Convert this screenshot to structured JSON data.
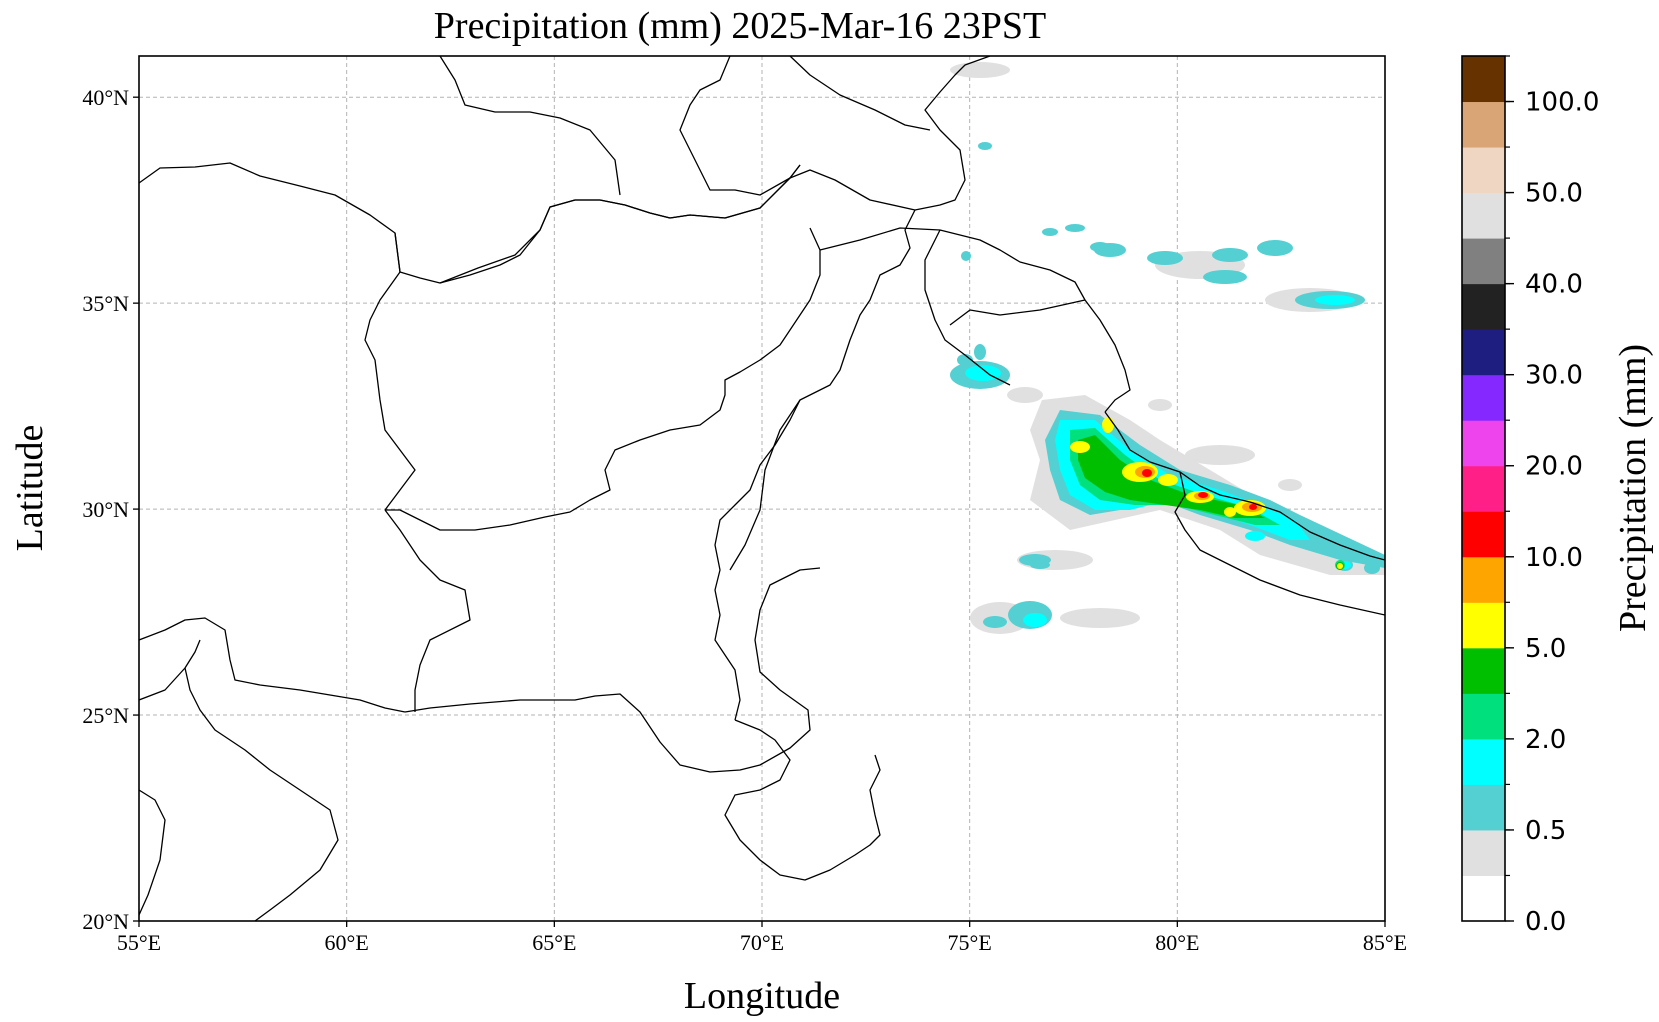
{
  "title": "Precipitation (mm)  2025-Mar-16 23PST",
  "axes": {
    "xlabel": "Longitude",
    "ylabel": "Latitude",
    "lon_range": [
      55,
      85
    ],
    "lat_range": [
      20,
      41
    ],
    "x_ticks": [
      {
        "value": 55,
        "label": "55°E"
      },
      {
        "value": 60,
        "label": "60°E"
      },
      {
        "value": 65,
        "label": "65°E"
      },
      {
        "value": 70,
        "label": "70°E"
      },
      {
        "value": 75,
        "label": "75°E"
      },
      {
        "value": 80,
        "label": "80°E"
      },
      {
        "value": 85,
        "label": "85°E"
      }
    ],
    "y_ticks": [
      {
        "value": 20,
        "label": "20°N"
      },
      {
        "value": 25,
        "label": "25°N"
      },
      {
        "value": 30,
        "label": "30°N"
      },
      {
        "value": 35,
        "label": "35°N"
      },
      {
        "value": 40,
        "label": "40°N"
      }
    ],
    "grid": "dashed"
  },
  "colorbar": {
    "label": "Precipitation (mm)",
    "levels": [
      0,
      0.25,
      0.5,
      1,
      2,
      3,
      5,
      7.5,
      10,
      15,
      20,
      25,
      30,
      35,
      40,
      45,
      50,
      75,
      100,
      125
    ],
    "colors": [
      "#ffffff",
      "#e0e0e0",
      "#54cfd2",
      "#00ffff",
      "#00e07c",
      "#00bf00",
      "#ffff00",
      "#ffa500",
      "#ff0000",
      "#ff1f87",
      "#ee44ee",
      "#8528ff",
      "#1e1e80",
      "#222222",
      "#808080",
      "#e0e0e0",
      "#eed6c2",
      "#d9a576",
      "#663300"
    ],
    "tick_labels": [
      "0.0",
      "0.5",
      "2.0",
      "5.0",
      "10.0",
      "20.0",
      "30.0",
      "40.0",
      "50.0",
      "100.0"
    ],
    "tick_label_index": [
      0,
      2,
      4,
      6,
      8,
      10,
      12,
      14,
      16,
      18
    ]
  },
  "chart_data": {
    "type": "heatmap",
    "title": "Precipitation (mm)  2025-Mar-16 23PST",
    "xlabel": "Longitude",
    "ylabel": "Latitude",
    "xlim": [
      55,
      85
    ],
    "ylim": [
      20,
      41
    ],
    "precip_cells": [
      {
        "lon": 77.6,
        "lat": 31.5,
        "mm": 3.0
      },
      {
        "lon": 78.0,
        "lat": 31.3,
        "mm": 6.0
      },
      {
        "lon": 78.5,
        "lat": 31.0,
        "mm": 4.0
      },
      {
        "lon": 79.2,
        "lat": 30.6,
        "mm": 8.0
      },
      {
        "lon": 79.7,
        "lat": 30.6,
        "mm": 12.0
      },
      {
        "lon": 80.7,
        "lat": 30.2,
        "mm": 12.0
      },
      {
        "lon": 81.3,
        "lat": 29.9,
        "mm": 5.0
      },
      {
        "lon": 82.0,
        "lat": 29.9,
        "mm": 8.0
      },
      {
        "lon": 84.3,
        "lat": 28.5,
        "mm": 8.0
      },
      {
        "lon": 75.5,
        "lat": 32.9,
        "mm": 1.0
      },
      {
        "lon": 77.1,
        "lat": 27.1,
        "mm": 0.6
      },
      {
        "lon": 81.0,
        "lat": 35.8,
        "mm": 0.6
      },
      {
        "lon": 84.0,
        "lat": 34.8,
        "mm": 0.6
      },
      {
        "lon": 78.3,
        "lat": 28.6,
        "mm": 0.4
      },
      {
        "lon": 80.3,
        "lat": 36.0,
        "mm": 0.4
      }
    ]
  }
}
